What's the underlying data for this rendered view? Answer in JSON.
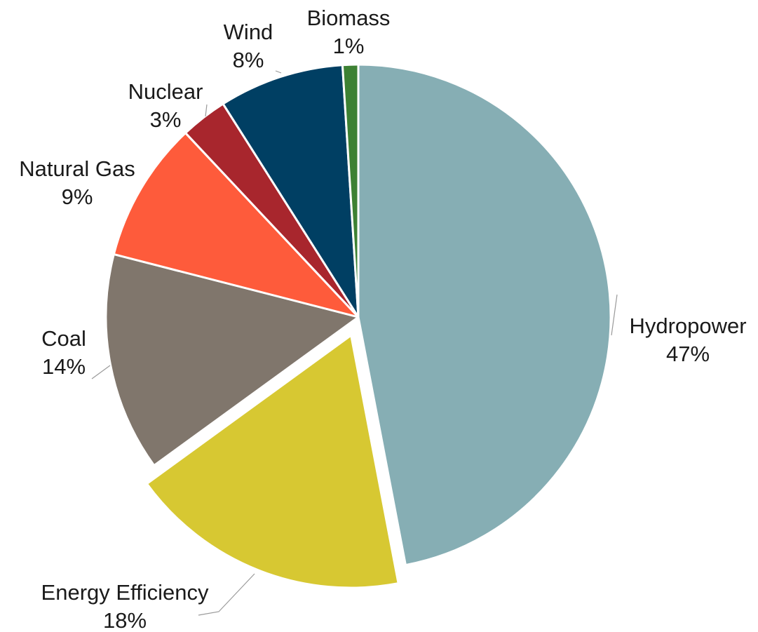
{
  "chart_data": {
    "type": "pie",
    "title": "",
    "labels": [
      "Hydropower",
      "Energy Efficiency",
      "Coal",
      "Natural Gas",
      "Nuclear",
      "Wind",
      "Biomass"
    ],
    "values": [
      47,
      18,
      14,
      9,
      3,
      8,
      1
    ],
    "value_labels": [
      "47%",
      "18%",
      "14%",
      "9%",
      "3%",
      "8%",
      "1%"
    ],
    "colors": [
      "#86aeb4",
      "#d7c832",
      "#80766c",
      "#fe5b3b",
      "#a8262d",
      "#003f63",
      "#3d8133"
    ],
    "start_angle_deg": 0,
    "direction": "clockwise",
    "exploded_slices": [
      "Energy Efficiency"
    ],
    "legend": "none (labels placed next to slices)"
  }
}
